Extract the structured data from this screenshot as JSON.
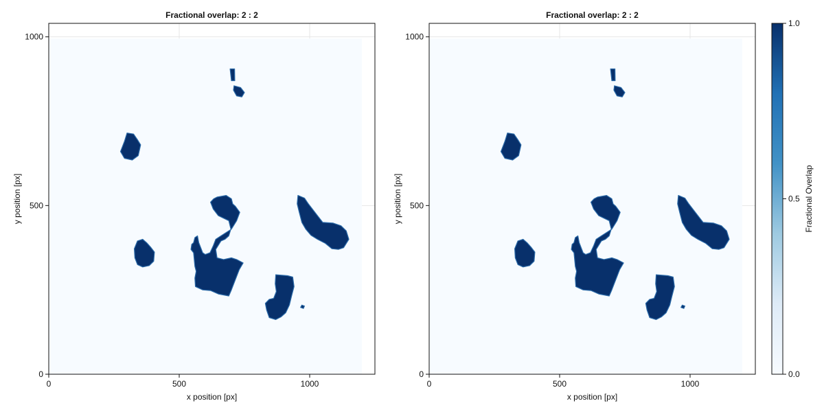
{
  "chart_data": [
    {
      "type": "heatmap",
      "title": "Fractional overlap: 2 : 2",
      "xlabel": "x position [px]",
      "ylabel": "y position [px]",
      "xlim": [
        0,
        1250
      ],
      "ylim": [
        0,
        1040
      ],
      "xticks": [
        0,
        500,
        1000
      ],
      "yticks": [
        0,
        500,
        1000
      ],
      "grid": true,
      "image_extent": {
        "x": [
          0,
          1200
        ],
        "y": [
          0,
          995
        ]
      },
      "background_value": 0.0,
      "regions": [
        {
          "name": "region-1",
          "value": 1.0,
          "points": [
            [
              695,
              905
            ],
            [
              712,
              905
            ],
            [
              713,
              870
            ],
            [
              700,
              870
            ]
          ]
        },
        {
          "name": "region-2",
          "value": 1.0,
          "points": [
            [
              710,
              855
            ],
            [
              735,
              850
            ],
            [
              750,
              835
            ],
            [
              740,
              822
            ],
            [
              720,
              825
            ],
            [
              708,
              842
            ]
          ]
        },
        {
          "name": "region-3",
          "value": 1.0,
          "points": [
            [
              300,
              715
            ],
            [
              325,
              712
            ],
            [
              340,
              695
            ],
            [
              352,
              680
            ],
            [
              343,
              648
            ],
            [
              320,
              635
            ],
            [
              290,
              640
            ],
            [
              275,
              660
            ],
            [
              290,
              690
            ]
          ]
        },
        {
          "name": "region-4",
          "value": 1.0,
          "points": [
            [
              645,
              525
            ],
            [
              680,
              530
            ],
            [
              700,
              520
            ],
            [
              705,
              505
            ],
            [
              715,
              498
            ],
            [
              732,
              480
            ],
            [
              720,
              455
            ],
            [
              700,
              430
            ],
            [
              680,
              420
            ],
            [
              660,
              410
            ],
            [
              640,
              400
            ],
            [
              630,
              380
            ],
            [
              618,
              360
            ],
            [
              600,
              355
            ],
            [
              590,
              360
            ],
            [
              575,
              390
            ],
            [
              570,
              410
            ],
            [
              560,
              405
            ],
            [
              555,
              390
            ],
            [
              548,
              385
            ],
            [
              545,
              370
            ],
            [
              555,
              360
            ],
            [
              560,
              320
            ],
            [
              565,
              305
            ],
            [
              560,
              285
            ],
            [
              562,
              260
            ],
            [
              590,
              250
            ],
            [
              620,
              248
            ],
            [
              650,
              238
            ],
            [
              690,
              232
            ],
            [
              700,
              250
            ],
            [
              715,
              280
            ],
            [
              730,
              310
            ],
            [
              745,
              330
            ],
            [
              720,
              340
            ],
            [
              700,
              345
            ],
            [
              670,
              340
            ],
            [
              645,
              345
            ],
            [
              640,
              370
            ],
            [
              660,
              395
            ],
            [
              675,
              400
            ],
            [
              690,
              410
            ],
            [
              698,
              430
            ],
            [
              690,
              455
            ],
            [
              650,
              470
            ],
            [
              630,
              490
            ],
            [
              620,
              510
            ],
            [
              632,
              520
            ]
          ]
        },
        {
          "name": "region-5",
          "value": 1.0,
          "points": [
            [
              955,
              530
            ],
            [
              980,
              522
            ],
            [
              995,
              505
            ],
            [
              1010,
              490
            ],
            [
              1030,
              470
            ],
            [
              1050,
              450
            ],
            [
              1090,
              448
            ],
            [
              1120,
              440
            ],
            [
              1140,
              425
            ],
            [
              1150,
              400
            ],
            [
              1130,
              375
            ],
            [
              1110,
              370
            ],
            [
              1085,
              372
            ],
            [
              1060,
              388
            ],
            [
              1030,
              400
            ],
            [
              1005,
              412
            ],
            [
              985,
              430
            ],
            [
              970,
              450
            ],
            [
              960,
              480
            ],
            [
              952,
              505
            ]
          ]
        },
        {
          "name": "region-6",
          "value": 1.0,
          "points": [
            [
              340,
              395
            ],
            [
              360,
              400
            ],
            [
              375,
              390
            ],
            [
              392,
              375
            ],
            [
              405,
              362
            ],
            [
              402,
              335
            ],
            [
              385,
              322
            ],
            [
              360,
              318
            ],
            [
              340,
              325
            ],
            [
              330,
              345
            ],
            [
              328,
              372
            ]
          ]
        },
        {
          "name": "region-7",
          "value": 1.0,
          "points": [
            [
              870,
              295
            ],
            [
              915,
              292
            ],
            [
              935,
              288
            ],
            [
              940,
              260
            ],
            [
              930,
              230
            ],
            [
              922,
              205
            ],
            [
              908,
              182
            ],
            [
              890,
              170
            ],
            [
              870,
              162
            ],
            [
              845,
              168
            ],
            [
              835,
              190
            ],
            [
              830,
              210
            ],
            [
              845,
              222
            ],
            [
              862,
              225
            ],
            [
              872,
              245
            ],
            [
              868,
              268
            ]
          ]
        },
        {
          "name": "region-8",
          "value": 1.0,
          "points": [
            [
              970,
              205
            ],
            [
              980,
              202
            ],
            [
              976,
              195
            ],
            [
              965,
              198
            ]
          ]
        }
      ],
      "colorbar": {
        "label": "Fractional Overlap",
        "ticks": [
          "0.0",
          "0.5",
          "1.0"
        ],
        "min": 0.0,
        "max": 1.0,
        "colors": [
          "#f7fbff",
          "#deebf7",
          "#9ecae1",
          "#4292c6",
          "#2171b5",
          "#08306b"
        ]
      }
    },
    {
      "type": "heatmap",
      "title": "Fractional overlap: 2 : 2",
      "xlabel": "x position [px]",
      "ylabel": "y position [px]",
      "xlim": [
        0,
        1250
      ],
      "ylim": [
        0,
        1040
      ],
      "xticks": [
        0,
        500,
        1000
      ],
      "yticks": [
        0,
        500,
        1000
      ],
      "grid": true,
      "image_extent": {
        "x": [
          0,
          1200
        ],
        "y": [
          0,
          995
        ]
      },
      "background_value": 0.0,
      "regions": [
        {
          "name": "region-1",
          "value": 1.0,
          "points": [
            [
              695,
              905
            ],
            [
              712,
              905
            ],
            [
              713,
              870
            ],
            [
              700,
              870
            ]
          ]
        },
        {
          "name": "region-2",
          "value": 1.0,
          "points": [
            [
              710,
              855
            ],
            [
              735,
              850
            ],
            [
              750,
              835
            ],
            [
              740,
              822
            ],
            [
              720,
              825
            ],
            [
              708,
              842
            ]
          ]
        },
        {
          "name": "region-3",
          "value": 1.0,
          "points": [
            [
              300,
              715
            ],
            [
              325,
              712
            ],
            [
              340,
              695
            ],
            [
              352,
              680
            ],
            [
              343,
              648
            ],
            [
              320,
              635
            ],
            [
              290,
              640
            ],
            [
              275,
              660
            ],
            [
              290,
              690
            ]
          ]
        },
        {
          "name": "region-4",
          "value": 1.0,
          "points": [
            [
              645,
              525
            ],
            [
              680,
              530
            ],
            [
              700,
              520
            ],
            [
              705,
              505
            ],
            [
              715,
              498
            ],
            [
              732,
              480
            ],
            [
              720,
              455
            ],
            [
              700,
              430
            ],
            [
              680,
              420
            ],
            [
              660,
              410
            ],
            [
              640,
              400
            ],
            [
              630,
              380
            ],
            [
              618,
              360
            ],
            [
              600,
              355
            ],
            [
              590,
              360
            ],
            [
              575,
              390
            ],
            [
              570,
              410
            ],
            [
              560,
              405
            ],
            [
              555,
              390
            ],
            [
              548,
              385
            ],
            [
              545,
              370
            ],
            [
              555,
              360
            ],
            [
              560,
              320
            ],
            [
              565,
              305
            ],
            [
              560,
              285
            ],
            [
              562,
              260
            ],
            [
              590,
              250
            ],
            [
              620,
              248
            ],
            [
              650,
              238
            ],
            [
              690,
              232
            ],
            [
              700,
              250
            ],
            [
              715,
              280
            ],
            [
              730,
              310
            ],
            [
              745,
              330
            ],
            [
              720,
              340
            ],
            [
              700,
              345
            ],
            [
              670,
              340
            ],
            [
              645,
              345
            ],
            [
              640,
              370
            ],
            [
              660,
              395
            ],
            [
              675,
              400
            ],
            [
              690,
              410
            ],
            [
              698,
              430
            ],
            [
              690,
              455
            ],
            [
              650,
              470
            ],
            [
              630,
              490
            ],
            [
              620,
              510
            ],
            [
              632,
              520
            ]
          ]
        },
        {
          "name": "region-5",
          "value": 1.0,
          "points": [
            [
              955,
              530
            ],
            [
              980,
              522
            ],
            [
              995,
              505
            ],
            [
              1010,
              490
            ],
            [
              1030,
              470
            ],
            [
              1050,
              450
            ],
            [
              1090,
              448
            ],
            [
              1120,
              440
            ],
            [
              1140,
              425
            ],
            [
              1150,
              400
            ],
            [
              1130,
              375
            ],
            [
              1110,
              370
            ],
            [
              1085,
              372
            ],
            [
              1060,
              388
            ],
            [
              1030,
              400
            ],
            [
              1005,
              412
            ],
            [
              985,
              430
            ],
            [
              970,
              450
            ],
            [
              960,
              480
            ],
            [
              952,
              505
            ]
          ]
        },
        {
          "name": "region-6",
          "value": 1.0,
          "points": [
            [
              340,
              395
            ],
            [
              360,
              400
            ],
            [
              375,
              390
            ],
            [
              392,
              375
            ],
            [
              405,
              362
            ],
            [
              402,
              335
            ],
            [
              385,
              322
            ],
            [
              360,
              318
            ],
            [
              340,
              325
            ],
            [
              330,
              345
            ],
            [
              328,
              372
            ]
          ]
        },
        {
          "name": "region-7",
          "value": 1.0,
          "points": [
            [
              870,
              295
            ],
            [
              915,
              292
            ],
            [
              935,
              288
            ],
            [
              940,
              260
            ],
            [
              930,
              230
            ],
            [
              922,
              205
            ],
            [
              908,
              182
            ],
            [
              890,
              170
            ],
            [
              870,
              162
            ],
            [
              845,
              168
            ],
            [
              835,
              190
            ],
            [
              830,
              210
            ],
            [
              845,
              222
            ],
            [
              862,
              225
            ],
            [
              872,
              245
            ],
            [
              868,
              268
            ]
          ]
        },
        {
          "name": "region-8",
          "value": 1.0,
          "points": [
            [
              970,
              205
            ],
            [
              980,
              202
            ],
            [
              976,
              195
            ],
            [
              965,
              198
            ]
          ]
        }
      ]
    }
  ]
}
